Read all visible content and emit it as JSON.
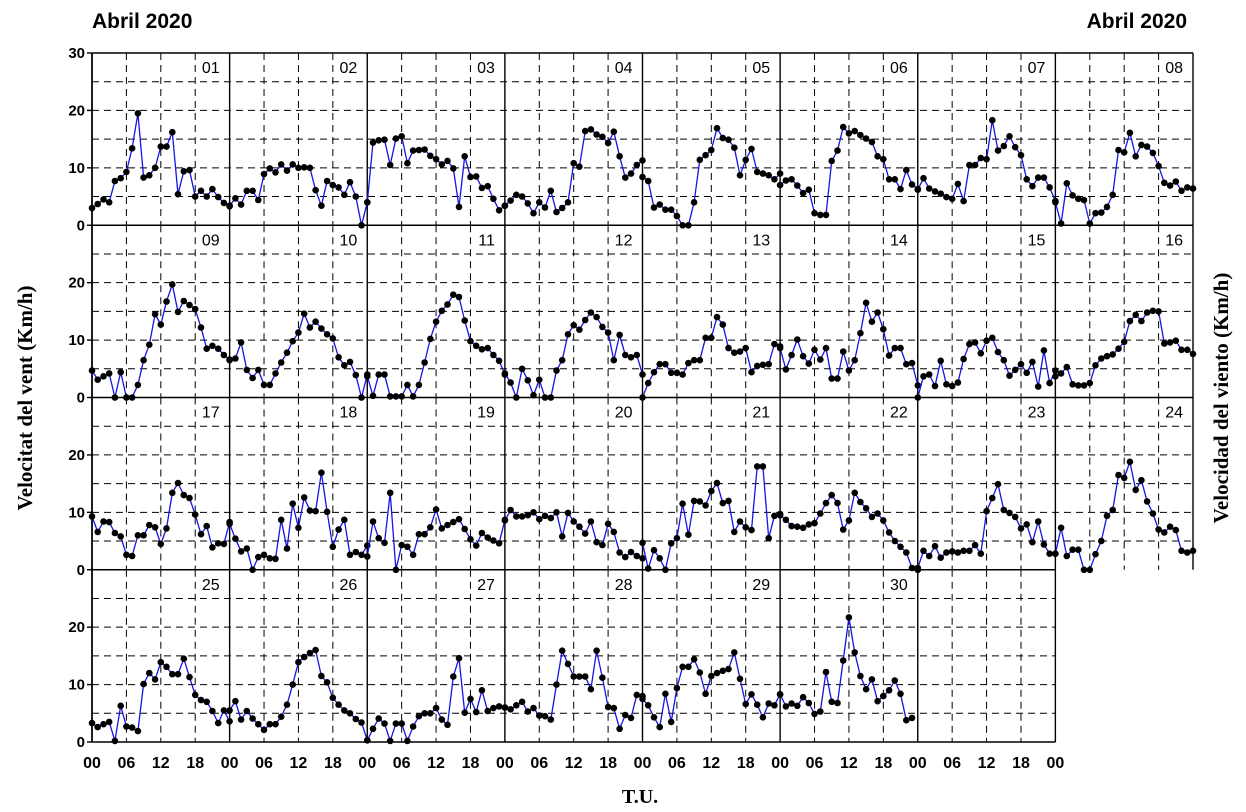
{
  "header": {
    "left_title": "Abril 2020",
    "right_title": "Abril 2020"
  },
  "colors": {
    "line": "#1414e6",
    "marker": "#000000",
    "grid": "#000000",
    "background": "#ffffff"
  },
  "chart_data": {
    "type": "line",
    "title": "Abril 2020",
    "xlabel": "T.U.",
    "ylabel_left": "Velocitat del vent (Km/h)",
    "ylabel_right": "Velocidad del viento (Km/h)",
    "ylim": [
      0,
      30
    ],
    "yticks": [
      "0",
      "10",
      "20",
      "30"
    ],
    "xticks": [
      "00",
      "06",
      "12",
      "18"
    ],
    "x_last_tick": "00",
    "hours_per_day": 24,
    "grid": true,
    "grid_style": "dashed",
    "panels_per_row": 8,
    "days": [
      {
        "label": "01",
        "values": [
          3,
          3.7,
          4.5,
          4,
          7.7,
          8.2,
          9.3,
          13.4,
          19.5,
          8.3,
          8.7,
          10,
          13.7,
          13.7,
          16.2,
          5.4,
          9.4,
          9.6,
          5,
          6,
          5,
          6.3,
          4.9,
          3.9,
          3.3
        ]
      },
      {
        "label": "02",
        "values": [
          3.4,
          4.7,
          3.6,
          6,
          6,
          4.4,
          8.9,
          9.9,
          9.2,
          10.6,
          9.5,
          10.6,
          10,
          10.1,
          10,
          6.1,
          3.4,
          7.7,
          7,
          6.6,
          5.3,
          7.5,
          5,
          0,
          4
        ]
      },
      {
        "label": "03",
        "values": [
          4,
          14.4,
          14.8,
          14.9,
          10.5,
          15.1,
          15.5,
          10.8,
          13,
          13.1,
          13.2,
          12.1,
          11.5,
          10.6,
          11.2,
          9.9,
          3.2,
          12,
          8.4,
          8.5,
          6.5,
          6.8,
          4.6,
          2.6,
          3.4
        ]
      },
      {
        "label": "04",
        "values": [
          3.4,
          4.3,
          5.3,
          5,
          3.8,
          2.1,
          4,
          3.1,
          6,
          2.3,
          3,
          4,
          10.8,
          10.2,
          16.4,
          16.7,
          15.8,
          15.4,
          14.3,
          16.3,
          12,
          8.3,
          9,
          10.5,
          11.3
        ]
      },
      {
        "label": "05",
        "values": [
          8.4,
          7.7,
          3.1,
          3.6,
          2.7,
          2.7,
          1.6,
          0,
          0,
          4,
          11.4,
          12.2,
          13.1,
          16.9,
          15.2,
          14.9,
          13.5,
          8.7,
          11.4,
          13.3,
          9.3,
          9,
          8.7,
          8,
          9
        ]
      },
      {
        "label": "06",
        "values": [
          7,
          7.8,
          8,
          6.9,
          5.6,
          6.2,
          2.1,
          1.8,
          1.8,
          11.2,
          13,
          17.1,
          16,
          16.4,
          15.7,
          15.1,
          14.5,
          12,
          11.5,
          8,
          8,
          6.3,
          9.6,
          7.1,
          6.3
        ]
      },
      {
        "label": "07",
        "values": [
          6.2,
          8.2,
          6.4,
          5.9,
          5.5,
          4.9,
          4.6,
          7.2,
          4.2,
          10.5,
          10.5,
          11.7,
          11.5,
          18.3,
          13,
          13.8,
          15.5,
          13.6,
          12.2,
          8,
          6.8,
          8.3,
          8.3,
          6.6,
          4.2
        ]
      },
      {
        "label": "08",
        "values": [
          4,
          0.3,
          7.3,
          5.2,
          4.6,
          4.4,
          0.3,
          2.1,
          2.2,
          3.2,
          5.3,
          13.1,
          12.7,
          16.1,
          12,
          14,
          13.7,
          12.6,
          10.3,
          7.4,
          6.9,
          7.6,
          6,
          6.6,
          6.4
        ]
      },
      {
        "label": "09",
        "values": [
          4.7,
          3.1,
          3.7,
          4.2,
          0,
          4.4,
          0,
          0,
          2.2,
          6.5,
          9.2,
          14.5,
          12.7,
          16.7,
          19.7,
          14.9,
          16.8,
          16.1,
          15.4,
          12.2,
          8.5,
          9,
          8.5,
          7.4,
          6.6
        ]
      },
      {
        "label": "10",
        "values": [
          6.5,
          6.8,
          9.6,
          4.8,
          3.4,
          4.8,
          2.2,
          2.2,
          4.2,
          6.1,
          7.8,
          9.8,
          11.3,
          14.6,
          12.2,
          13.2,
          12,
          11,
          10.3,
          7,
          5.6,
          6.2,
          3.9,
          0,
          4
        ]
      },
      {
        "label": "11",
        "values": [
          3.7,
          0.3,
          4,
          4,
          0.2,
          0.2,
          0.2,
          2.2,
          0.2,
          2.2,
          6.1,
          10.2,
          13.2,
          15.1,
          16.2,
          17.9,
          17.5,
          13.4,
          9.8,
          9,
          8.4,
          8.6,
          7.4,
          6.4,
          4
        ]
      },
      {
        "label": "12",
        "values": [
          4.2,
          2.6,
          0,
          5,
          3,
          0.4,
          3.1,
          0,
          0,
          4.7,
          6.5,
          11,
          12.6,
          11.8,
          13.5,
          14.8,
          14,
          12.3,
          11.3,
          6.5,
          10.9,
          7.4,
          7,
          7.4,
          4
        ]
      },
      {
        "label": "13",
        "values": [
          0,
          2.5,
          4.4,
          5.8,
          5.8,
          4.3,
          4.3,
          4,
          6,
          6.5,
          6.5,
          10.4,
          10.4,
          14,
          12.7,
          8.6,
          7.8,
          8,
          8.6,
          4.4,
          5.5,
          5.7,
          5.8,
          9.3,
          8.9
        ]
      },
      {
        "label": "14",
        "values": [
          8.6,
          4.9,
          7.4,
          10.1,
          7.2,
          5.9,
          8.3,
          6.6,
          8.6,
          3.3,
          3.3,
          8,
          4.7,
          6.5,
          11.2,
          16.5,
          13.2,
          14.8,
          11.9,
          7.3,
          8.6,
          8.6,
          5.8,
          6,
          2.1
        ]
      },
      {
        "label": "15",
        "values": [
          0,
          3.7,
          4,
          2,
          6.4,
          2.3,
          2,
          2.6,
          6.7,
          9.3,
          9.6,
          7.7,
          9.9,
          10.4,
          7.9,
          6.5,
          3.8,
          4.8,
          5.8,
          4.3,
          6.2,
          1.9,
          8.2,
          2.5,
          4.7
        ]
      },
      {
        "label": "16",
        "values": [
          3.7,
          4.2,
          5.3,
          2.3,
          2.1,
          2.1,
          2.5,
          5.6,
          6.8,
          7.2,
          7.5,
          8.5,
          9.7,
          13.3,
          14.4,
          13.3,
          14.8,
          15.1,
          15,
          9.4,
          9.6,
          9.9,
          8.3,
          8.3,
          7.6
        ]
      },
      {
        "label": "17",
        "values": [
          9.3,
          6.6,
          8.4,
          8.3,
          6.4,
          5.8,
          2.6,
          2.4,
          6,
          6,
          7.8,
          7.4,
          4.5,
          7.2,
          13.4,
          15.1,
          13,
          12.5,
          9.6,
          6.2,
          7.6,
          3.9,
          4.6,
          4.5,
          8.3
        ]
      },
      {
        "label": "18",
        "values": [
          8,
          5.4,
          3.2,
          3.7,
          0,
          2.2,
          2.6,
          2,
          1.9,
          8.7,
          3.7,
          11.5,
          7.3,
          12.6,
          10.3,
          10.2,
          16.9,
          10.1,
          4,
          7,
          8.7,
          2.6,
          3.1,
          2.6,
          4.2
        ]
      },
      {
        "label": "19",
        "values": [
          2.3,
          8.4,
          5.5,
          4.7,
          13.4,
          0,
          4.3,
          4,
          2.6,
          6.2,
          6.2,
          7.4,
          10.5,
          7.2,
          7.8,
          8.3,
          8.8,
          7.1,
          5.3,
          4.2,
          6.4,
          5.6,
          5.1,
          4.6,
          8.7
        ]
      },
      {
        "label": "20",
        "values": [
          8.6,
          10.4,
          9.3,
          9.3,
          9.5,
          10,
          8.8,
          9.4,
          9,
          10,
          5.8,
          9.9,
          8.4,
          7.5,
          6.3,
          8.4,
          4.8,
          4.3,
          8,
          6.6,
          3,
          2.2,
          3.1,
          2.4,
          2
        ]
      },
      {
        "label": "21",
        "values": [
          4.7,
          0.2,
          3.4,
          2,
          0,
          4.6,
          5.5,
          11.5,
          6.1,
          12,
          11.9,
          11.2,
          13.7,
          15.1,
          11.6,
          12,
          6.6,
          8.4,
          7.4,
          6.9,
          18,
          18,
          5.5,
          9.4,
          9.7
        ]
      },
      {
        "label": "22",
        "values": [
          9.5,
          8.7,
          7.6,
          7.5,
          7.3,
          7.9,
          8.1,
          9.8,
          11.6,
          13,
          11.6,
          7,
          8.6,
          13.4,
          11.8,
          10.7,
          9.2,
          9.8,
          8.6,
          6.5,
          5,
          4,
          3,
          0.3,
          0
        ]
      },
      {
        "label": "23",
        "values": [
          0.3,
          3.3,
          2.4,
          4.1,
          2.1,
          3,
          3.2,
          3,
          3.3,
          3.3,
          4.3,
          2.8,
          10.2,
          12.5,
          14.9,
          10.4,
          9.9,
          9.2,
          7.2,
          7.9,
          4.8,
          8.4,
          4.4,
          2.8,
          2.8
        ]
      },
      {
        "label": "24",
        "values": [
          2.8,
          7.3,
          2.4,
          3.5,
          3.5,
          0,
          0,
          2.7,
          5,
          9.4,
          10.4,
          16.5,
          16,
          18.8,
          13.9,
          15.6,
          11.9,
          9.8,
          7,
          6.5,
          7.5,
          6.9,
          3.3,
          3,
          3.3
        ]
      },
      {
        "label": "25",
        "values": [
          3.3,
          2.6,
          3.1,
          3.5,
          0.2,
          6.3,
          2.7,
          2.5,
          1.9,
          10.1,
          12,
          10.9,
          13.9,
          13.1,
          11.8,
          11.8,
          14.5,
          11.3,
          8.2,
          7.3,
          7,
          5.4,
          3.3,
          5.5,
          3.6
        ]
      },
      {
        "label": "26",
        "values": [
          5.5,
          7.1,
          3.9,
          5.4,
          4.1,
          3.1,
          2.1,
          3.1,
          3.1,
          4.4,
          6.5,
          10,
          13.9,
          14.8,
          15.5,
          16,
          11.5,
          10.4,
          7.7,
          6.5,
          5.5,
          5,
          4,
          3.4,
          0.3
        ]
      },
      {
        "label": "27",
        "values": [
          0.3,
          2.3,
          4.1,
          3.2,
          0.2,
          3.2,
          3.2,
          0.2,
          2.7,
          4.5,
          5,
          5,
          5.9,
          3.9,
          3,
          11.4,
          14.6,
          5.1,
          7.5,
          5.2,
          9,
          5.4,
          5.9,
          6.2,
          6
        ]
      },
      {
        "label": "28",
        "values": [
          6,
          5.7,
          6.4,
          7,
          5.3,
          5.9,
          4.6,
          4.5,
          3.9,
          10,
          15.9,
          13.6,
          11.4,
          11.4,
          11.4,
          9.2,
          15.9,
          11.2,
          6.1,
          5.9,
          2.3,
          4.7,
          4.2,
          8.2,
          8
        ]
      },
      {
        "label": "29",
        "values": [
          7.5,
          6.4,
          4.3,
          2.6,
          8.4,
          3.5,
          9.4,
          13.1,
          13.1,
          14.4,
          12.1,
          8.4,
          11.5,
          12,
          12.4,
          12.7,
          15.6,
          11,
          6.6,
          8.3,
          6.5,
          4.3,
          6.7,
          6.4,
          8.3
        ]
      },
      {
        "label": "30",
        "values": [
          8.3,
          6.2,
          6.7,
          6.3,
          7.8,
          6.8,
          4.9,
          5.3,
          12.2,
          7,
          6.8,
          14.2,
          21.7,
          15.6,
          11.5,
          9.2,
          10.9,
          7.1,
          8,
          9,
          10.7,
          8.4,
          3.8,
          4.2
        ]
      }
    ]
  }
}
